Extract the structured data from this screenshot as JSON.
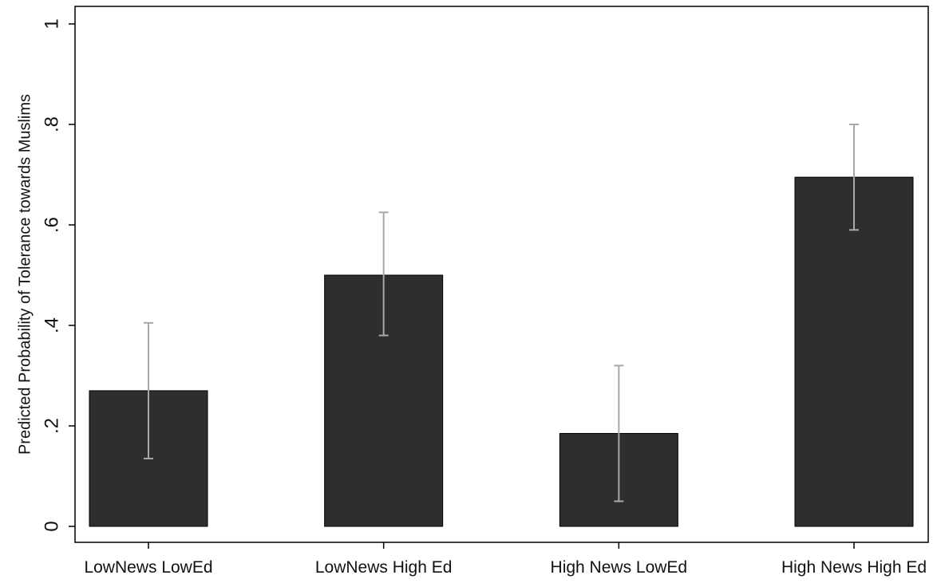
{
  "chart_data": {
    "type": "bar",
    "categories": [
      "LowNews LowEd",
      "LowNews High Ed",
      "High News LowEd",
      "High News High Ed"
    ],
    "values": [
      0.27,
      0.5,
      0.185,
      0.695
    ],
    "error_bars": {
      "low": [
        0.135,
        0.38,
        0.05,
        0.59
      ],
      "high": [
        0.405,
        0.625,
        0.32,
        0.8
      ]
    },
    "ylabel": "Predicted Probability of Tolerance towards Muslims",
    "xlabel": "",
    "title": "",
    "ylim": [
      0,
      1
    ],
    "yticks": [
      0,
      0.2,
      0.4,
      0.6,
      0.8,
      1
    ],
    "ytick_labels": [
      "0",
      ".2",
      ".4",
      ".6",
      ".8",
      "1"
    ],
    "grid": false,
    "legend": "none",
    "colors": {
      "bar": "#2e2e2e",
      "error_bar": "#a8a8a8",
      "axis": "#000000"
    }
  }
}
